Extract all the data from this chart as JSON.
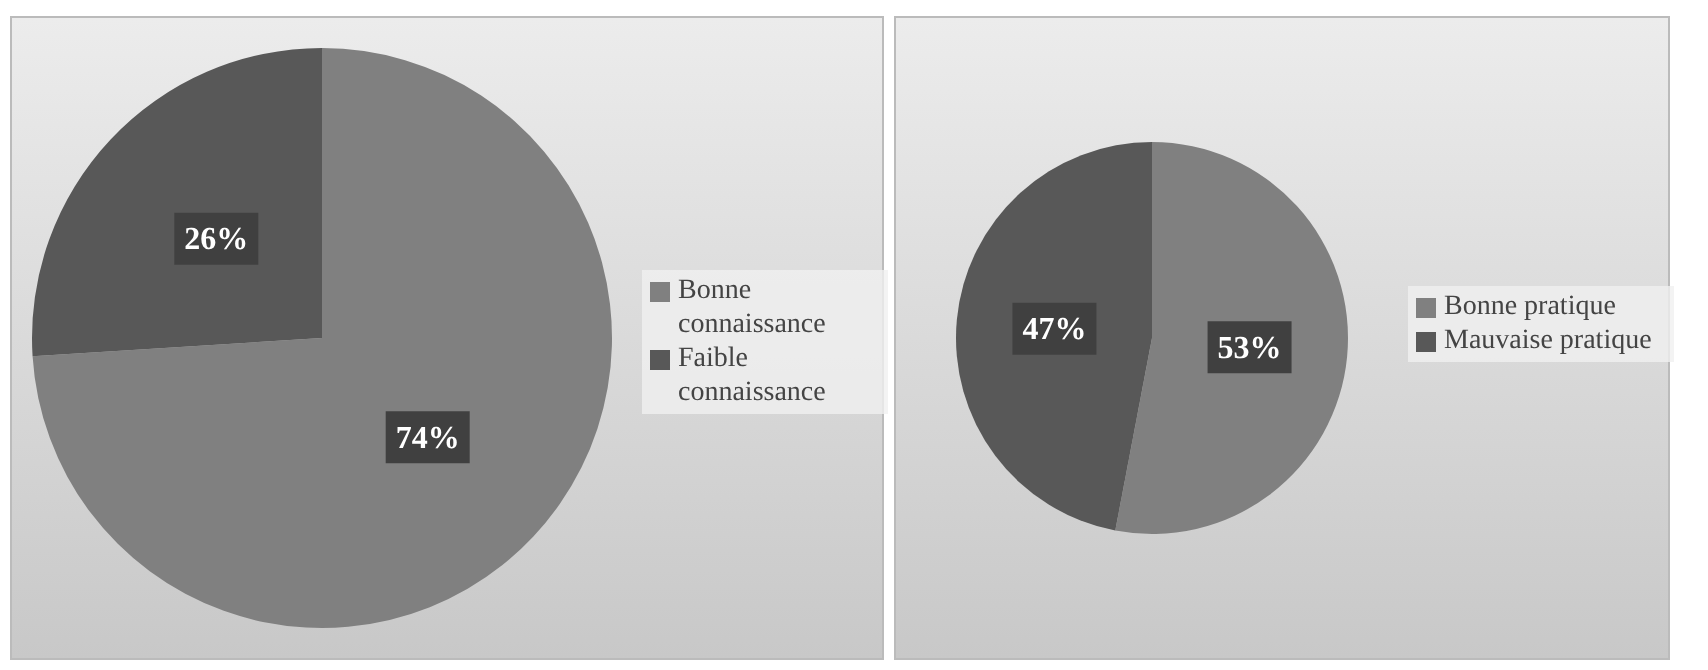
{
  "chart_data": [
    {
      "type": "pie",
      "categories": [
        "Bonne connaissance",
        "Faible connaissance"
      ],
      "values": [
        74,
        26
      ],
      "colors": [
        "#808080",
        "#585858"
      ],
      "value_labels": [
        "74%",
        "26%"
      ],
      "legend": "right"
    },
    {
      "type": "pie",
      "categories": [
        "Bonne pratique",
        "Mauvaise pratique"
      ],
      "values": [
        53,
        47
      ],
      "colors": [
        "#808080",
        "#585858"
      ],
      "value_labels": [
        "53%",
        "47%"
      ],
      "legend": "right"
    }
  ]
}
